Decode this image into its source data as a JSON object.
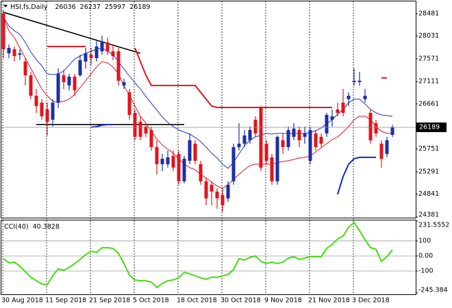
{
  "chart_data": [
    {
      "type": "candlestick",
      "title": "HSI,fs,Daily",
      "categories": [
        "30 Aug 2018",
        null,
        null,
        null,
        null,
        null,
        null,
        null,
        "11 Sep 2018",
        null,
        null,
        null,
        null,
        null,
        null,
        null,
        "21 Sep 2018",
        null,
        null,
        null,
        null,
        null,
        null,
        null,
        "5 Oct 2018",
        null,
        null,
        null,
        null,
        null,
        null,
        null,
        "18 Oct 2018",
        null,
        null,
        null,
        null,
        null,
        null,
        null,
        "30 Oct 2018",
        null,
        null,
        null,
        null,
        null,
        null,
        null,
        "9 Nov 2018",
        null,
        null,
        null,
        null,
        null,
        null,
        null,
        "21 Nov 2018",
        null,
        null,
        null,
        null,
        null,
        null,
        null,
        "3 Dec 2018",
        null,
        null,
        null,
        null,
        null,
        null,
        null
      ],
      "open": [
        28481,
        27681,
        27763,
        27653,
        27515,
        27239,
        26825,
        26687,
        26549,
        26342,
        26687,
        27239,
        27032,
        27211,
        27239,
        27515,
        27653,
        27584,
        27722,
        27901,
        27722,
        27722,
        27032,
        26894,
        26480,
        26301,
        26204,
        26135,
        25790,
        25445,
        25445,
        25611,
        25652,
        25100,
        25514,
        25859,
        25445,
        25100,
        25031,
        24893,
        24824,
        24755,
        25100,
        25790,
        25859,
        25928,
        26342,
        26577,
        25859,
        25583,
        25100,
        25928,
        25790,
        25997,
        26135,
        25997,
        25514,
        26066,
        25997,
        26066,
        26342,
        26549,
        26687,
        26756,
        27101,
        27101,
        26756,
        26480,
        26273,
        25859,
        25652,
        26036
      ],
      "high": [
        28550,
        27860,
        27819,
        27763,
        27584,
        27308,
        26963,
        26756,
        26687,
        26756,
        27377,
        27349,
        27267,
        27267,
        27653,
        27791,
        27791,
        27929,
        28039,
        27998,
        27860,
        27791,
        27170,
        26963,
        26549,
        26411,
        26273,
        26204,
        25928,
        25652,
        25721,
        25721,
        25721,
        25611,
        26066,
        25928,
        25514,
        25169,
        25100,
        24962,
        24962,
        25100,
        25859,
        26273,
        26135,
        26204,
        26411,
        26618,
        25928,
        25652,
        26025,
        26066,
        26204,
        26273,
        26204,
        26204,
        26204,
        26135,
        26066,
        26480,
        26549,
        26687,
        26963,
        26894,
        27377,
        27308,
        26963,
        26549,
        26342,
        25928,
        25997,
        26237
      ],
      "low": [
        27584,
        27584,
        27515,
        27543,
        27032,
        26756,
        26480,
        26342,
        26025,
        26204,
        26577,
        26963,
        26935,
        26825,
        27211,
        27377,
        27446,
        27515,
        27653,
        27653,
        27543,
        27032,
        26963,
        26342,
        25928,
        25928,
        25997,
        25721,
        25238,
        25307,
        25376,
        25307,
        25031,
        25059,
        25445,
        25445,
        25031,
        24617,
        24617,
        24548,
        24479,
        24686,
        25031,
        25721,
        25790,
        25859,
        25997,
        25307,
        25445,
        25031,
        25031,
        25652,
        25721,
        25928,
        25790,
        25859,
        25445,
        25721,
        25790,
        25997,
        26204,
        26411,
        26411,
        26618,
        27032,
        27032,
        26687,
        25859,
        25997,
        25376,
        25583,
        25997
      ],
      "close": [
        27763,
        27791,
        27625,
        27681,
        27239,
        26825,
        26618,
        26411,
        26301,
        26687,
        27267,
        27101,
        27211,
        26935,
        27543,
        27681,
        27584,
        27819,
        27901,
        27722,
        27625,
        27129,
        27101,
        26439,
        25997,
        25997,
        26066,
        25790,
        25445,
        25555,
        25583,
        25376,
        25100,
        25555,
        25928,
        25514,
        25100,
        24755,
        24893,
        24755,
        24617,
        25031,
        25790,
        25859,
        26025,
        26135,
        26066,
        25376,
        25514,
        25100,
        25997,
        25790,
        26135,
        26163,
        25928,
        26066,
        26135,
        25790,
        25859,
        26439,
        26411,
        26480,
        26480,
        26825,
        27129,
        27129,
        26825,
        25928,
        26066,
        25555,
        25928,
        26189
      ],
      "up_color": "#1c2fa8",
      "down_color": "#e3141c",
      "series": [
        {
          "color": "#2030d0",
          "values": [
            28412,
            28233,
            28136,
            28067,
            27901,
            27708,
            27556,
            27432,
            27267,
            27253,
            27267,
            27322,
            27446,
            27570,
            27625,
            27681,
            27722,
            27763,
            27791,
            27722,
            27653,
            27515,
            27363,
            27225,
            27087,
            26963,
            26811,
            26673,
            26535,
            26397,
            26287,
            26204,
            26135,
            26094,
            26052,
            25983,
            25900,
            25790,
            25666,
            25569,
            25445,
            25362,
            25486,
            25652,
            25818,
            25928,
            25997,
            26025,
            26066,
            26052,
            26066,
            26066,
            26066,
            26066,
            26066,
            26066,
            26080,
            26121,
            26176,
            26259,
            26342,
            26453,
            26549,
            26687,
            26756,
            26756,
            26659,
            26549,
            26480,
            26439,
            26425,
            26411
          ]
        },
        {
          "color": "#e3141c",
          "values": [
            28412,
            28136,
            27998,
            27791,
            27584,
            27377,
            27170,
            26963,
            26825,
            26715,
            26687,
            26715,
            26756,
            26853,
            26991,
            27129,
            27267,
            27405,
            27515,
            27487,
            27405,
            27267,
            27032,
            26825,
            26618,
            26411,
            26273,
            26107,
            25956,
            25831,
            25749,
            25666,
            25555,
            25445,
            25376,
            25335,
            25238,
            25169,
            25086,
            25004,
            24962,
            25031,
            25141,
            25238,
            25335,
            25417,
            25445,
            25445,
            25445,
            25445,
            25473,
            25500,
            25514,
            25542,
            25569,
            25583,
            25611,
            25693,
            25776,
            25859,
            25942,
            25997,
            26094,
            26204,
            26342,
            26411,
            26411,
            26342,
            26204,
            26107,
            26066,
            26066
          ]
        },
        {
          "color": "#e3141c",
          "width": 2,
          "values": [
            null,
            null,
            null,
            null,
            null,
            null,
            null,
            null,
            27819,
            27819,
            27819,
            27819,
            27819,
            27819,
            27819,
            27819,
            null,
            null,
            null,
            null,
            null,
            null,
            null,
            null,
            27791,
            27515,
            27239,
            27032,
            27032,
            27032,
            27032,
            27032,
            27032,
            27032,
            27032,
            27032,
            26894,
            26756,
            26618,
            26590,
            26590,
            26590,
            26590,
            26590,
            26590,
            26590,
            26590,
            26590,
            26590,
            26590,
            26590,
            26590,
            26590,
            26590,
            26590,
            26590,
            26590,
            26590,
            26590,
            26590,
            26590,
            null,
            null,
            null,
            null,
            null,
            null,
            null,
            null,
            27184,
            27184,
            null
          ]
        },
        {
          "color": "#1028d0",
          "width": 2,
          "values": [
            null,
            null,
            null,
            null,
            null,
            null,
            null,
            null,
            null,
            null,
            null,
            null,
            null,
            null,
            null,
            null,
            26190,
            26204,
            26232,
            26245,
            26245,
            null,
            null,
            null,
            null,
            null,
            null,
            null,
            null,
            null,
            null,
            null,
            null,
            null,
            null,
            null,
            null,
            null,
            null,
            null,
            null,
            null,
            null,
            null,
            null,
            null,
            null,
            null,
            null,
            null,
            null,
            null,
            null,
            null,
            null,
            null,
            null,
            null,
            null,
            null,
            null,
            24838,
            25197,
            25445,
            25555,
            25583,
            25583,
            25583,
            25583,
            null,
            null,
            null
          ]
        }
      ],
      "trendlines": [
        {
          "x": [
            0,
            25
          ],
          "y": [
            28509,
            27681
          ]
        },
        {
          "x": [
            6,
            33
          ],
          "y": [
            26245,
            26245
          ]
        }
      ],
      "ylim": [
        24367,
        28729
      ],
      "yticks": [
        28481,
        28031,
        27571,
        27111,
        26661,
        25751,
        25291,
        24841,
        24381
      ]
    },
    {
      "type": "line",
      "title": "CCI(40)",
      "color": "#44dd11",
      "values": [
        -18,
        -45,
        -41,
        -68,
        -105,
        -141,
        -164,
        -186,
        -191,
        -132,
        -86,
        -95,
        -77,
        -50,
        -23,
        9,
        32,
        23,
        55,
        55,
        50,
        18,
        -50,
        -127,
        -159,
        -164,
        -164,
        -173,
        -209,
        -182,
        -164,
        -159,
        -145,
        -109,
        -118,
        -132,
        -145,
        -155,
        -141,
        -141,
        -132,
        -123,
        -91,
        -18,
        -27,
        -9,
        0,
        -36,
        -50,
        -41,
        -50,
        -41,
        -14,
        -5,
        -23,
        -14,
        -5,
        -5,
        -5,
        50,
        77,
        114,
        132,
        191,
        223,
        168,
        109,
        55,
        45,
        -36,
        -5,
        40.3828
      ],
      "ylim": [
        -245.384,
        231.5552
      ],
      "yticks": [
        231.5552,
        100,
        {
          "value": 0,
          "label": "0.00"
        },
        -100,
        -245.384
      ]
    }
  ]
}
